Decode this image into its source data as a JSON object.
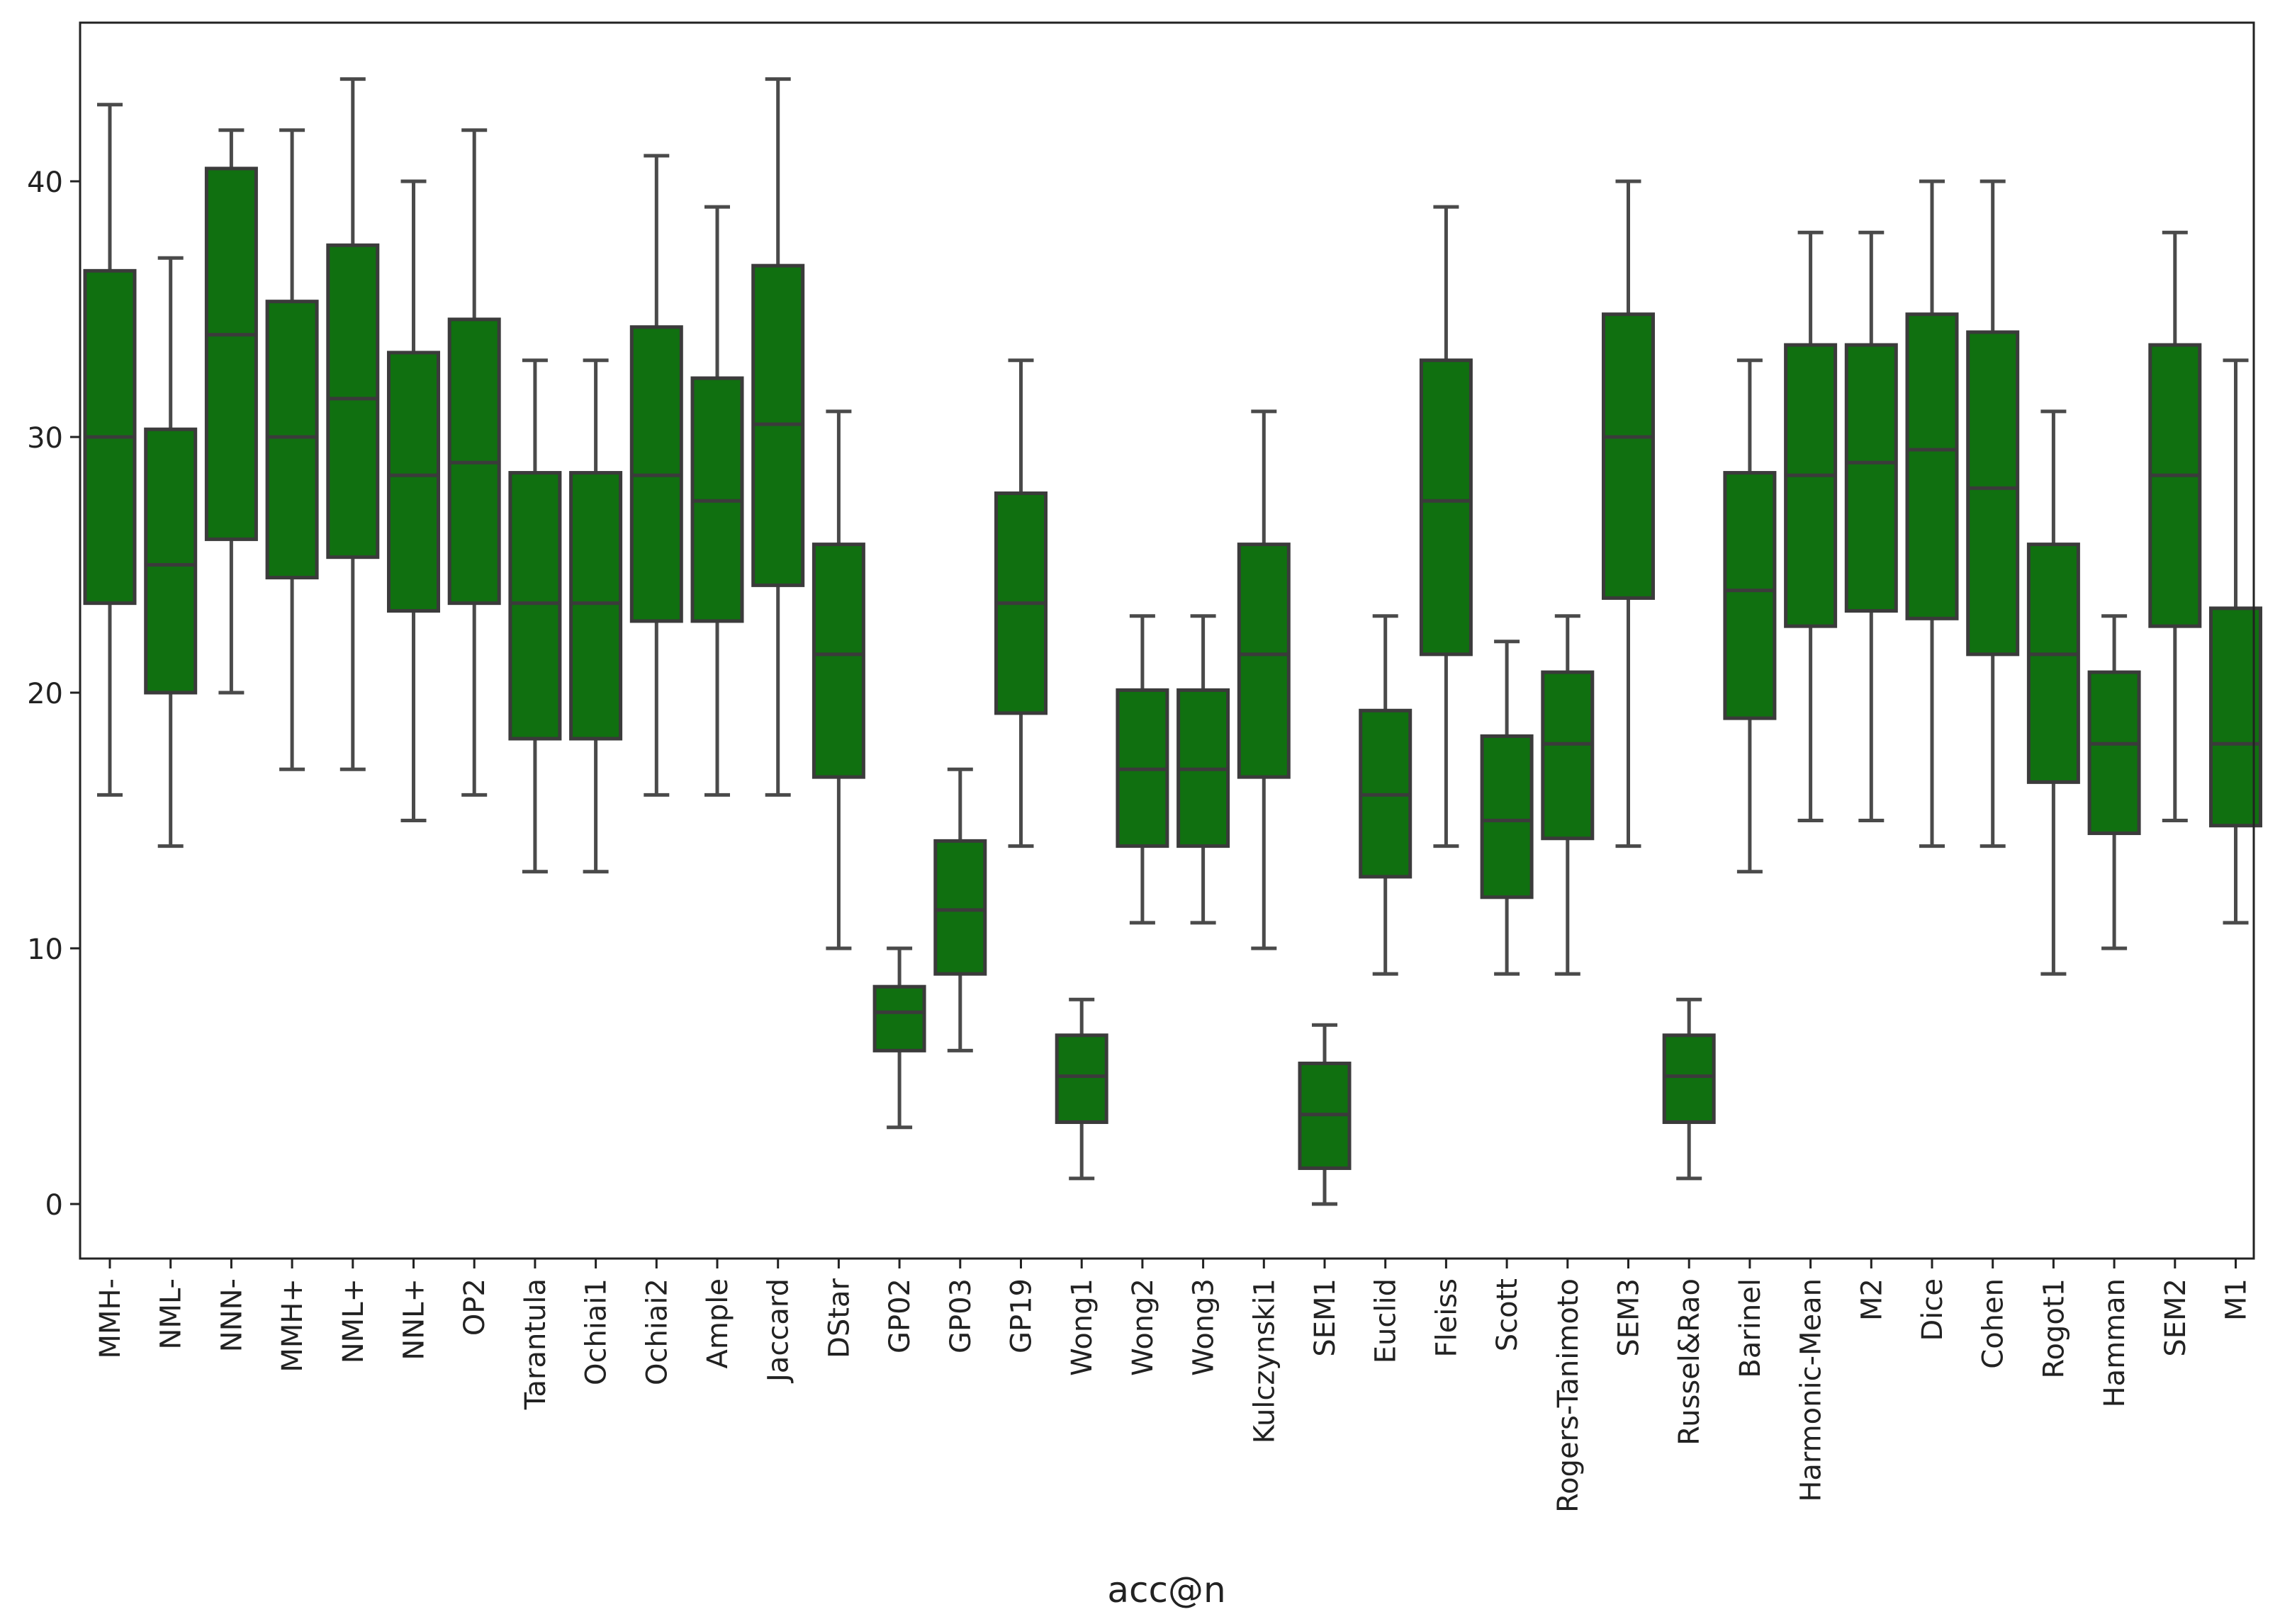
{
  "colors": {
    "box_fill": "#107010",
    "box_edge": "#3b3b3b",
    "whisker": "#4a4a4a",
    "axis": "#222222"
  },
  "chart_data": {
    "type": "box",
    "title": "",
    "xlabel": "acc@n",
    "ylabel": "",
    "ylim": [
      -2.4,
      46
    ],
    "yticks": [
      0,
      10,
      20,
      30,
      40
    ],
    "grid": false,
    "categories": [
      "MMH-",
      "NML-",
      "NNN-",
      "MMH+",
      "NML+",
      "NNL+",
      "OP2",
      "Tarantula",
      "Ochiai1",
      "Ochiai2",
      "Ample",
      "Jaccard",
      "DStar",
      "GP02",
      "GP03",
      "GP19",
      "Wong1",
      "Wong2",
      "Wong3",
      "Kulczynski1",
      "SEM1",
      "Euclid",
      "Fleiss",
      "Scott",
      "Rogers-Tanimoto",
      "SEM3",
      "Russel&Rao",
      "Barinel",
      "Harmonic-Mean",
      "M2",
      "Dice",
      "Cohen",
      "Rogot1",
      "Hamman",
      "SEM2",
      "M1"
    ],
    "boxes": [
      {
        "min": 16,
        "q1": 23.5,
        "median": 30,
        "q3": 36.5,
        "max": 43
      },
      {
        "min": 14,
        "q1": 20,
        "median": 25,
        "q3": 30.3,
        "max": 37
      },
      {
        "min": 20,
        "q1": 26,
        "median": 34,
        "q3": 40.5,
        "max": 42
      },
      {
        "min": 17,
        "q1": 24.5,
        "median": 30,
        "q3": 35.3,
        "max": 42
      },
      {
        "min": 17,
        "q1": 25.3,
        "median": 31.5,
        "q3": 37.5,
        "max": 44
      },
      {
        "min": 15,
        "q1": 23.2,
        "median": 28.5,
        "q3": 33.3,
        "max": 40
      },
      {
        "min": 16,
        "q1": 23.5,
        "median": 29,
        "q3": 34.6,
        "max": 42
      },
      {
        "min": 13,
        "q1": 18.2,
        "median": 23.5,
        "q3": 28.6,
        "max": 33
      },
      {
        "min": 13,
        "q1": 18.2,
        "median": 23.5,
        "q3": 28.6,
        "max": 33
      },
      {
        "min": 16,
        "q1": 22.8,
        "median": 28.5,
        "q3": 34.3,
        "max": 41
      },
      {
        "min": 16,
        "q1": 22.8,
        "median": 27.5,
        "q3": 32.3,
        "max": 39
      },
      {
        "min": 16,
        "q1": 24.2,
        "median": 30.5,
        "q3": 36.7,
        "max": 44
      },
      {
        "min": 10,
        "q1": 16.7,
        "median": 21.5,
        "q3": 25.8,
        "max": 31
      },
      {
        "min": 3,
        "q1": 6,
        "median": 7.5,
        "q3": 8.5,
        "max": 10
      },
      {
        "min": 6,
        "q1": 9,
        "median": 11.5,
        "q3": 14.2,
        "max": 17
      },
      {
        "min": 14,
        "q1": 19.2,
        "median": 23.5,
        "q3": 27.8,
        "max": 33
      },
      {
        "min": 1,
        "q1": 3.2,
        "median": 5,
        "q3": 6.6,
        "max": 8
      },
      {
        "min": 11,
        "q1": 14,
        "median": 17,
        "q3": 20.1,
        "max": 23
      },
      {
        "min": 11,
        "q1": 14,
        "median": 17,
        "q3": 20.1,
        "max": 23
      },
      {
        "min": 10,
        "q1": 16.7,
        "median": 21.5,
        "q3": 25.8,
        "max": 31
      },
      {
        "min": 0,
        "q1": 1.4,
        "median": 3.5,
        "q3": 5.5,
        "max": 7
      },
      {
        "min": 9,
        "q1": 12.8,
        "median": 16,
        "q3": 19.3,
        "max": 23
      },
      {
        "min": 14,
        "q1": 21.5,
        "median": 27.5,
        "q3": 33,
        "max": 39
      },
      {
        "min": 9,
        "q1": 12,
        "median": 15,
        "q3": 18.3,
        "max": 22
      },
      {
        "min": 9,
        "q1": 14.3,
        "median": 18,
        "q3": 20.8,
        "max": 23
      },
      {
        "min": 14,
        "q1": 23.7,
        "median": 30,
        "q3": 34.8,
        "max": 40
      },
      {
        "min": 1,
        "q1": 3.2,
        "median": 5,
        "q3": 6.6,
        "max": 8
      },
      {
        "min": 13,
        "q1": 19,
        "median": 24,
        "q3": 28.6,
        "max": 33
      },
      {
        "min": 15,
        "q1": 22.6,
        "median": 28.5,
        "q3": 33.6,
        "max": 38
      },
      {
        "min": 15,
        "q1": 23.2,
        "median": 29,
        "q3": 33.6,
        "max": 38
      },
      {
        "min": 14,
        "q1": 22.9,
        "median": 29.5,
        "q3": 34.8,
        "max": 40
      },
      {
        "min": 14,
        "q1": 21.5,
        "median": 28,
        "q3": 34.1,
        "max": 40
      },
      {
        "min": 9,
        "q1": 16.5,
        "median": 21.5,
        "q3": 25.8,
        "max": 31
      },
      {
        "min": 10,
        "q1": 14.5,
        "median": 18,
        "q3": 20.8,
        "max": 23
      },
      {
        "min": 15,
        "q1": 22.6,
        "median": 28.5,
        "q3": 33.6,
        "max": 38
      },
      {
        "min": 11,
        "q1": 14.8,
        "median": 18,
        "q3": 23.3,
        "max": 33
      }
    ]
  }
}
